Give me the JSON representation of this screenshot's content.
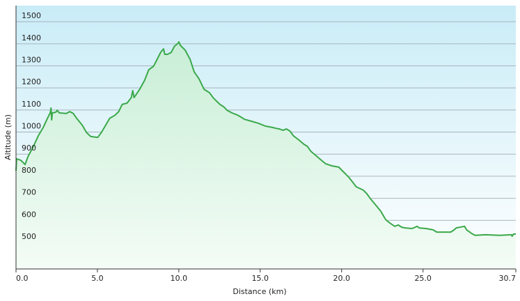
{
  "chart_data": {
    "type": "area",
    "xlabel": "Distance  (km)",
    "ylabel": "Altitude (m)",
    "x": [
      0,
      0.04,
      0.3,
      0.56,
      0.73,
      1.07,
      1.37,
      1.67,
      1.93,
      2.1,
      2.15,
      2.19,
      2.23,
      2.45,
      2.53,
      2.66,
      3.09,
      3.3,
      3.52,
      3.73,
      4.08,
      4.33,
      4.59,
      5.02,
      5.24,
      5.45,
      5.75,
      6.09,
      6.31,
      6.52,
      6.82,
      7.08,
      7.17,
      7.25,
      7.6,
      7.9,
      8.15,
      8.45,
      8.67,
      8.88,
      9.06,
      9.14,
      9.31,
      9.53,
      9.74,
      9.96,
      10.0,
      10.09,
      10.39,
      10.69,
      10.94,
      11.24,
      11.55,
      11.89,
      12.1,
      12.32,
      12.53,
      12.75,
      12.96,
      13.26,
      13.61,
      13.82,
      14.03,
      14.46,
      14.89,
      15.32,
      15.75,
      15.97,
      16.18,
      16.39,
      16.61,
      16.82,
      17.04,
      17.38,
      17.68,
      17.9,
      18.11,
      18.41,
      18.76,
      19.01,
      19.4,
      19.83,
      20.04,
      20.26,
      20.47,
      20.9,
      21.33,
      21.55,
      21.76,
      22.19,
      22.4,
      22.7,
      22.96,
      23.26,
      23.48,
      23.69,
      23.91,
      24.33,
      24.64,
      24.76,
      25.19,
      25.62,
      25.84,
      26.7,
      26.91,
      27.04,
      27.55,
      27.68,
      27.98,
      28.2,
      28.84,
      29.7,
      30.43,
      30.47,
      30.56,
      30.7
    ],
    "series": [
      {
        "color": "#3aa84a",
        "values": [
          825,
          879,
          872,
          853,
          888,
          935,
          983,
          1021,
          1062,
          1087,
          1109,
          1055,
          1087,
          1090,
          1099,
          1087,
          1084,
          1093,
          1084,
          1062,
          1030,
          998,
          980,
          976,
          998,
          1024,
          1062,
          1077,
          1093,
          1125,
          1131,
          1156,
          1188,
          1156,
          1194,
          1235,
          1282,
          1298,
          1330,
          1361,
          1377,
          1352,
          1352,
          1361,
          1390,
          1402,
          1409,
          1393,
          1371,
          1330,
          1273,
          1241,
          1194,
          1178,
          1156,
          1140,
          1125,
          1115,
          1099,
          1087,
          1077,
          1068,
          1058,
          1049,
          1040,
          1027,
          1021,
          1017,
          1014,
          1008,
          1014,
          1005,
          983,
          964,
          945,
          935,
          913,
          894,
          872,
          857,
          847,
          841,
          825,
          809,
          793,
          752,
          737,
          721,
          699,
          661,
          642,
          604,
          588,
          573,
          579,
          569,
          566,
          563,
          573,
          566,
          563,
          557,
          547,
          547,
          557,
          566,
          573,
          557,
          541,
          532,
          535,
          532,
          535,
          528,
          538,
          538
        ]
      }
    ],
    "xlim": [
      0,
      30.7
    ],
    "xticks": [
      {
        "value": 0,
        "label": "0.0"
      },
      {
        "value": 5,
        "label": "5.0"
      },
      {
        "value": 10,
        "label": "10.0"
      },
      {
        "value": 15,
        "label": "15.0"
      },
      {
        "value": 20,
        "label": "20.0"
      },
      {
        "value": 25,
        "label": "25.0"
      },
      30.7
    ],
    "ylim": [
      380,
      1573
    ],
    "yticks": [
      500,
      600,
      700,
      800,
      900,
      1000,
      1100,
      1200,
      1300,
      1400,
      1500
    ],
    "grid": true
  }
}
